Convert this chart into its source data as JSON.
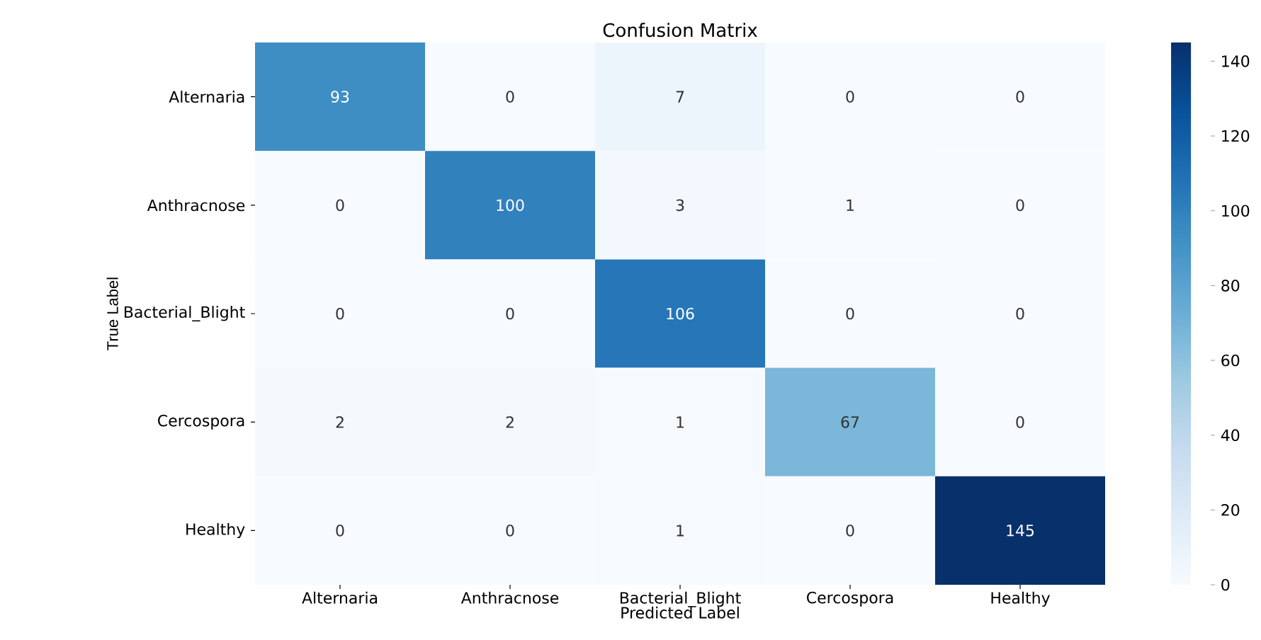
{
  "chart_data": {
    "type": "heatmap",
    "title": "Confusion Matrix",
    "xlabel": "Predicted Label",
    "ylabel": "True Label",
    "categories": [
      "Alternaria",
      "Anthracnose",
      "Bacterial_Blight",
      "Cercospora",
      "Healthy"
    ],
    "y_categories": [
      "Alternaria",
      "Anthracnose",
      "Bacterial_Blight",
      "Cercospora",
      "Healthy"
    ],
    "cells": [
      [
        93,
        0,
        7,
        0,
        0
      ],
      [
        0,
        100,
        3,
        1,
        0
      ],
      [
        0,
        0,
        106,
        0,
        0
      ],
      [
        2,
        2,
        1,
        67,
        0
      ],
      [
        0,
        0,
        1,
        0,
        145
      ]
    ],
    "data_labels": true,
    "clim": [
      0,
      145
    ],
    "cticks": [
      0,
      20,
      40,
      60,
      80,
      100,
      120,
      140
    ]
  }
}
